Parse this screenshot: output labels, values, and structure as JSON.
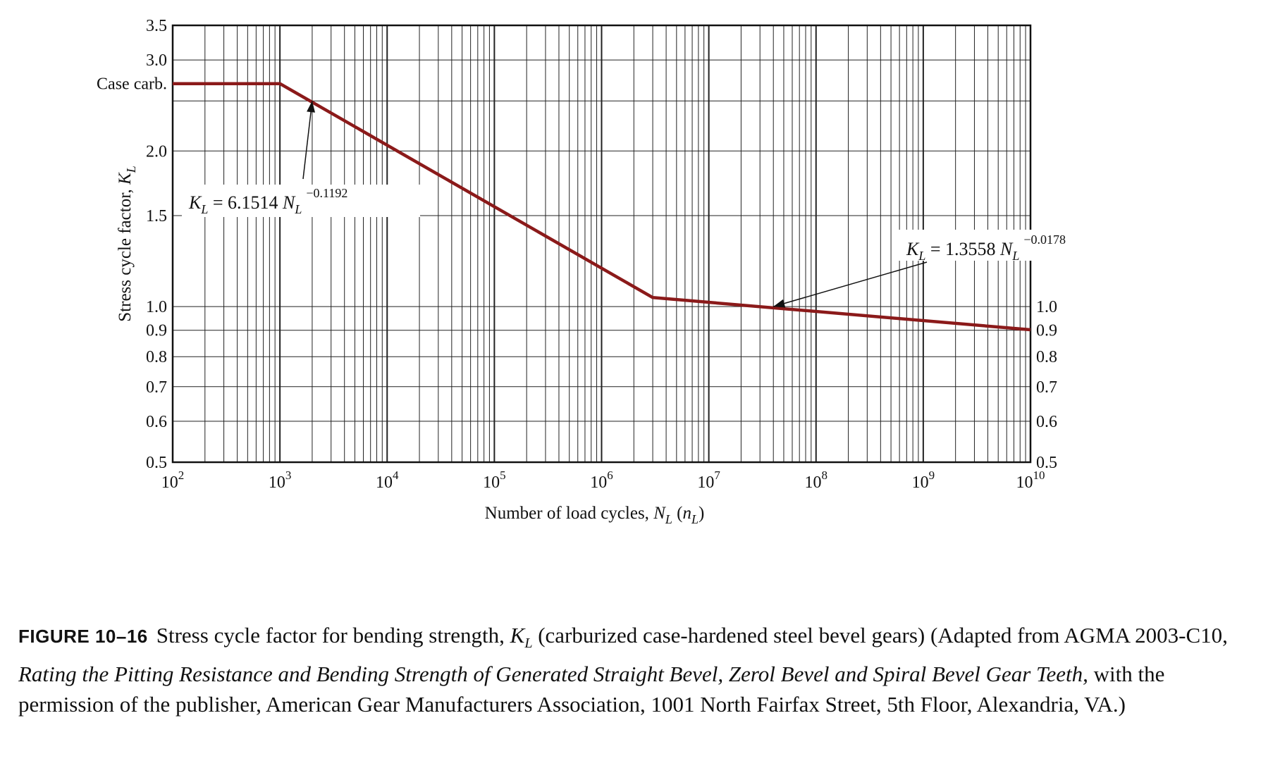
{
  "chart_data": {
    "type": "line",
    "x_scale": "log",
    "y_scale": "log",
    "xlim": [
      100,
      10000000000
    ],
    "ylim": [
      0.5,
      3.5
    ],
    "x_ticks": [
      {
        "value": 100,
        "base": "10",
        "exp": "2"
      },
      {
        "value": 1000,
        "base": "10",
        "exp": "3"
      },
      {
        "value": 10000,
        "base": "10",
        "exp": "4"
      },
      {
        "value": 100000,
        "base": "10",
        "exp": "5"
      },
      {
        "value": 1000000,
        "base": "10",
        "exp": "6"
      },
      {
        "value": 10000000,
        "base": "10",
        "exp": "7"
      },
      {
        "value": 100000000,
        "base": "10",
        "exp": "8"
      },
      {
        "value": 1000000000,
        "base": "10",
        "exp": "9"
      },
      {
        "value": 10000000000,
        "base": "10",
        "exp": "10"
      }
    ],
    "y_ticks_left": [
      {
        "value": 3.5,
        "label": "3.5"
      },
      {
        "value": 3.0,
        "label": "3.0"
      },
      {
        "value": 2.0,
        "label": "2.0"
      },
      {
        "value": 1.5,
        "label": "1.5"
      },
      {
        "value": 1.0,
        "label": "1.0"
      },
      {
        "value": 0.9,
        "label": "0.9"
      },
      {
        "value": 0.8,
        "label": "0.8"
      },
      {
        "value": 0.7,
        "label": "0.7"
      },
      {
        "value": 0.6,
        "label": "0.6"
      },
      {
        "value": 0.5,
        "label": "0.5"
      }
    ],
    "y_ticks_right": [
      {
        "value": 1.0,
        "label": "1.0"
      },
      {
        "value": 0.9,
        "label": "0.9"
      },
      {
        "value": 0.8,
        "label": "0.8"
      },
      {
        "value": 0.7,
        "label": "0.7"
      },
      {
        "value": 0.6,
        "label": "0.6"
      },
      {
        "value": 0.5,
        "label": "0.5"
      }
    ],
    "y_grid_values": [
      0.5,
      0.6,
      0.7,
      0.8,
      0.9,
      1.0,
      1.5,
      2.0,
      2.5,
      3.0,
      3.5
    ],
    "case_carb_label": {
      "value": 2.7,
      "label": "Case carb."
    },
    "ylabel": {
      "main": "Stress cycle factor, ",
      "var": "K",
      "sub": "L"
    },
    "xlabel": {
      "main": "Number of load cycles, ",
      "var": "N",
      "sub": "L",
      "paren_var": "n",
      "paren_sub": "L"
    },
    "grid": true,
    "series": [
      {
        "color": "#8b1a1a",
        "x": [
          100,
          1000,
          3000000,
          10000000000
        ],
        "y": [
          2.7,
          2.7,
          1.041,
          0.902
        ]
      }
    ],
    "annotations": [
      {
        "var": "K",
        "sub": "L",
        "eq": " = 6.1514 ",
        "nvar": "N",
        "nsub": "L",
        "exp": "−0.1192",
        "arrow_target": {
          "x": 2000,
          "y": 2.5
        }
      },
      {
        "var": "K",
        "sub": "L",
        "eq": " = 1.3558 ",
        "nvar": "N",
        "nsub": "L",
        "exp": "−0.0178",
        "arrow_target": {
          "x": 40000000,
          "y": 1.0
        }
      }
    ]
  },
  "caption": {
    "figure_label": "FIGURE 10–16",
    "text_1": "Stress cycle factor for bending strength, ",
    "var": "K",
    "sub": "L",
    "text_2": " (carburized case-hardened steel bevel gears) (Adapted from AGMA 2003-C10, ",
    "title": "Rating the Pitting Resistance and Bending Strength of Generated Straight Bevel, Zerol Bevel and Spiral Bevel Gear Teeth,",
    "text_3": " with the permission of the publisher, American Gear Manufacturers Association, 1001 North Fairfax Street, 5th Floor, Alexandria, VA.)"
  }
}
